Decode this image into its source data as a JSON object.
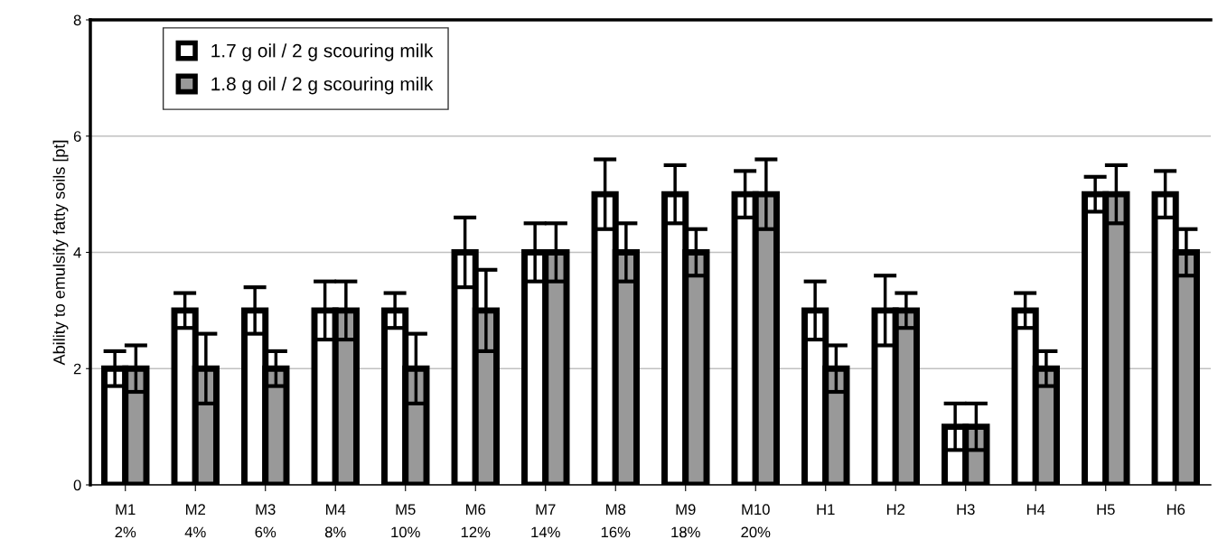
{
  "chart_data": {
    "type": "bar",
    "ylabel": "Ability to emulsify fatty soils [pt]",
    "categories": [
      "M1\n2%",
      "M2\n4%",
      "M3\n6%",
      "M4\n8%",
      "M5\n10%",
      "M6\n12%",
      "M7\n14%",
      "M8\n16%",
      "M9\n18%",
      "M10\n20%",
      "H1",
      "H2",
      "H3",
      "H4",
      "H5",
      "H6"
    ],
    "series": [
      {
        "name": "1.7 g oil / 2 g scouring milk",
        "color": "#ffffff",
        "values": [
          2,
          3,
          3,
          3,
          3,
          4,
          4,
          5,
          5,
          5,
          3,
          3,
          1,
          3,
          5,
          5
        ],
        "errors": [
          0.3,
          0.3,
          0.4,
          0.5,
          0.3,
          0.6,
          0.5,
          0.6,
          0.5,
          0.4,
          0.5,
          0.6,
          0.4,
          0.3,
          0.3,
          0.4
        ]
      },
      {
        "name": "1.8 g oil / 2 g scouring milk",
        "color": "#999999",
        "values": [
          2,
          2,
          2,
          3,
          2,
          3,
          4,
          4,
          4,
          5,
          2,
          3,
          1,
          2,
          5,
          4
        ],
        "errors": [
          0.4,
          0.6,
          0.3,
          0.5,
          0.6,
          0.7,
          0.5,
          0.5,
          0.4,
          0.6,
          0.4,
          0.3,
          0.4,
          0.3,
          0.5,
          0.4
        ]
      }
    ],
    "ylim": [
      0,
      8
    ],
    "yticks": [
      0,
      2,
      4,
      6,
      8
    ],
    "grid": "y",
    "legend": "top left"
  }
}
